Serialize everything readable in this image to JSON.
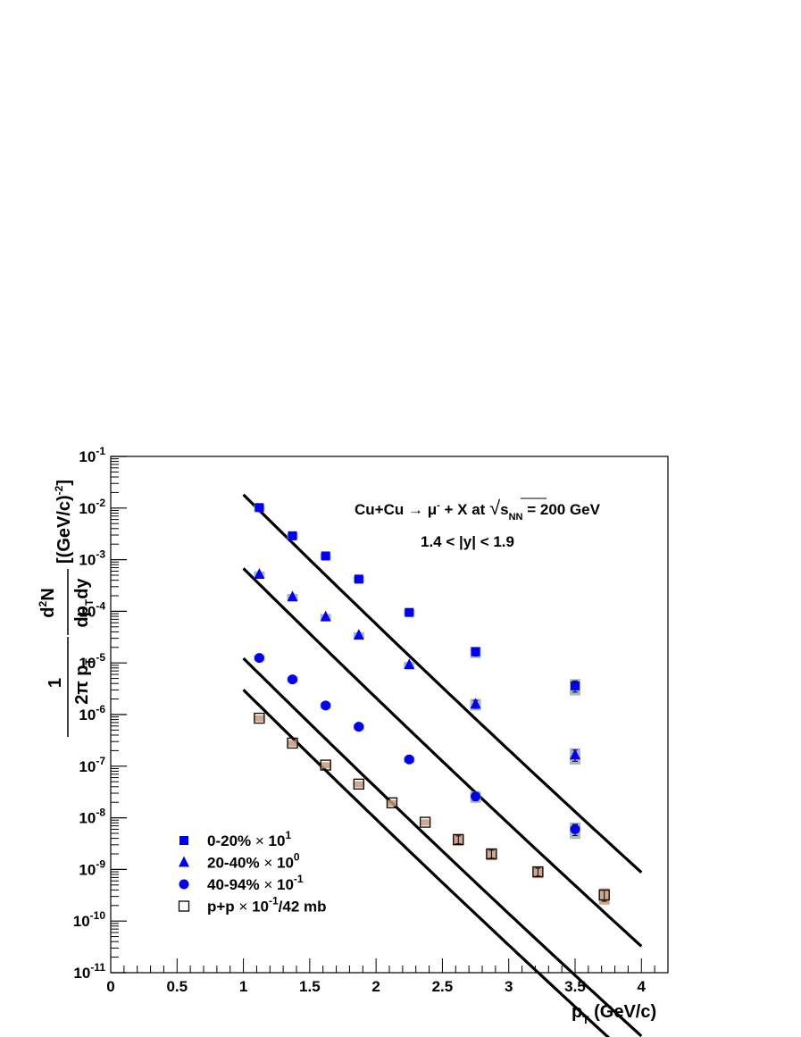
{
  "chart_data": {
    "type": "scatter",
    "xlabel": "p_T (GeV/c)",
    "ylabel": "1/(2π p_T) d²N/(dp_T dy) [(GeV/c)^-2]",
    "xlim": [
      0,
      4.2
    ],
    "ylim_exp": [
      -11,
      -1
    ],
    "y_scale": "log",
    "x_ticks": [
      "0",
      "0.5",
      "1",
      "1.5",
      "2",
      "2.5",
      "3",
      "3.5",
      "4"
    ],
    "y_ticks": [
      {
        "base": "10",
        "exp": "-1"
      },
      {
        "base": "10",
        "exp": "-2"
      },
      {
        "base": "10",
        "exp": "-3"
      },
      {
        "base": "10",
        "exp": "-4"
      },
      {
        "base": "10",
        "exp": "-5"
      },
      {
        "base": "10",
        "exp": "-6"
      },
      {
        "base": "10",
        "exp": "-7"
      },
      {
        "base": "10",
        "exp": "-8"
      },
      {
        "base": "10",
        "exp": "-9"
      },
      {
        "base": "10",
        "exp": "-10"
      },
      {
        "base": "10",
        "exp": "-11"
      }
    ],
    "annotation_line1": "Cu+Cu → μ⁻ + X at √s_NN = 200 GeV",
    "annotation_line2": "1.4 < |y| < 1.9",
    "series": [
      {
        "name": "0-20% × 10^1",
        "marker": "square-filled",
        "color": "#0000ee",
        "syst_color": "#9aaabb",
        "x": [
          1.12,
          1.37,
          1.62,
          1.87,
          2.25,
          2.75,
          3.5
        ],
        "y": [
          0.0102,
          0.0029,
          0.00118,
          0.00042,
          9.5e-05,
          1.65e-05,
          3.6e-06
        ],
        "fit": {
          "a": -1.74,
          "b": -2.54,
          "c": 0.0335
        }
      },
      {
        "name": "20-40% × 10^0",
        "marker": "triangle-filled",
        "color": "#0000ee",
        "syst_color": "#9aaabb",
        "x": [
          1.12,
          1.37,
          1.62,
          1.87,
          2.25,
          2.75,
          3.5
        ],
        "y": [
          0.00052,
          0.00019,
          7.8e-05,
          3.45e-05,
          9.2e-06,
          1.6e-06,
          1.65e-07
        ],
        "fit": {
          "a": -3.17,
          "b": -2.54,
          "c": 0.0335
        }
      },
      {
        "name": "40-94% × 10^-1",
        "marker": "circle-filled",
        "color": "#0000ee",
        "syst_color": "#9aaabb",
        "x": [
          1.12,
          1.37,
          1.62,
          1.87,
          2.25,
          2.75,
          3.5
        ],
        "y": [
          1.25e-05,
          4.8e-06,
          1.5e-06,
          5.8e-07,
          1.35e-07,
          2.6e-08,
          6e-09
        ],
        "fit": {
          "a": -4.91,
          "b": -2.54,
          "c": 0.0335
        }
      },
      {
        "name": "p+p × 10^-1/42 mb",
        "marker": "square-open",
        "color": "#000000",
        "syst_color": "#c89878",
        "x": [
          1.12,
          1.37,
          1.62,
          1.87,
          2.12,
          2.37,
          2.62,
          2.87,
          3.22,
          3.72
        ],
        "y": [
          8.5e-07,
          2.8e-07,
          1.05e-07,
          4.5e-08,
          1.95e-08,
          8.2e-09,
          3.8e-09,
          2e-09,
          9e-10,
          3.2e-10
        ],
        "fit": {
          "a": -5.52,
          "b": -2.54,
          "c": 0.0335
        }
      }
    ],
    "legend": [
      {
        "pre": "0-20%",
        "times": "×",
        "base": "10",
        "exp": "1",
        "post": ""
      },
      {
        "pre": "20-40%",
        "times": "×",
        "base": "10",
        "exp": "0",
        "post": ""
      },
      {
        "pre": "40-94%",
        "times": "×",
        "base": "10",
        "exp": "-1",
        "post": ""
      },
      {
        "pre": "p+p",
        "times": "×",
        "base": "10",
        "exp": "-1",
        "post": "/42 mb"
      }
    ],
    "legend_position": "bottom-left"
  }
}
